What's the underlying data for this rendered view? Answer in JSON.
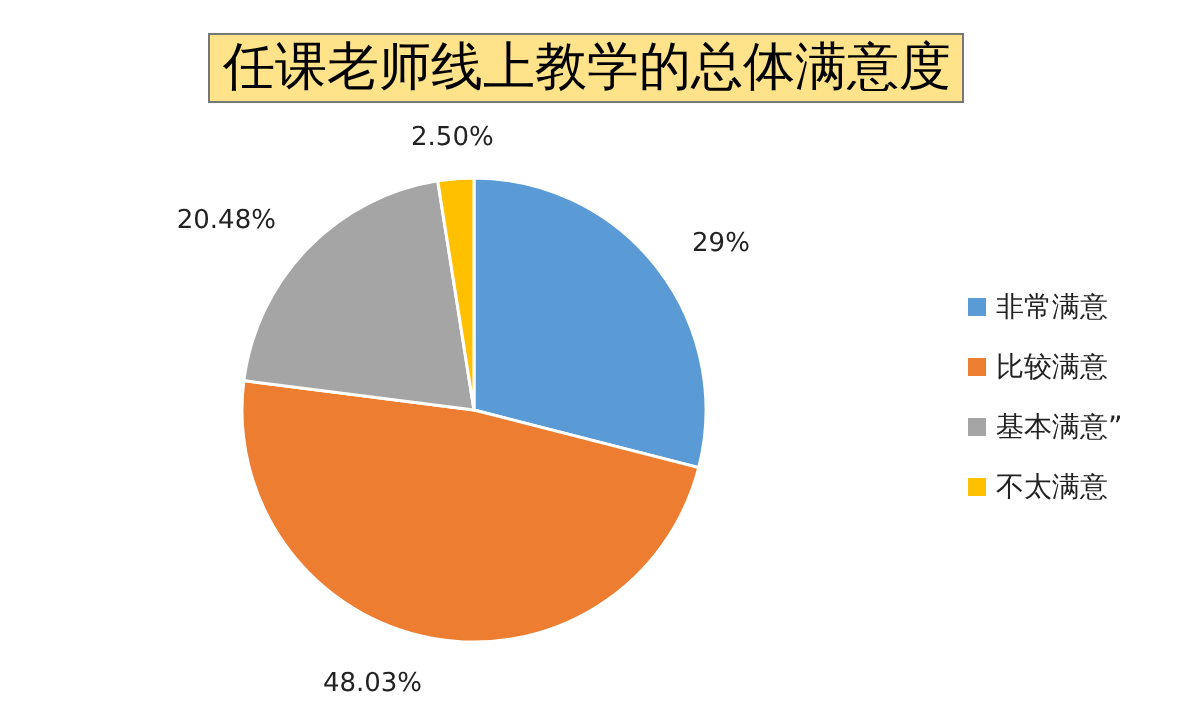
{
  "chart_data": {
    "type": "pie",
    "title": "任课老师线上教学的总体满意度",
    "categories": [
      "非常满意",
      "比较满意",
      "基本满意”",
      "不太满意"
    ],
    "values": [
      29,
      48.03,
      20.48,
      2.5
    ],
    "colors": [
      "#5b9bd5",
      "#ed7d31",
      "#a5a5a5",
      "#ffc000"
    ],
    "value_labels": [
      "29%",
      "48.03%",
      "20.48%",
      "2.50%"
    ],
    "legend": "right"
  }
}
